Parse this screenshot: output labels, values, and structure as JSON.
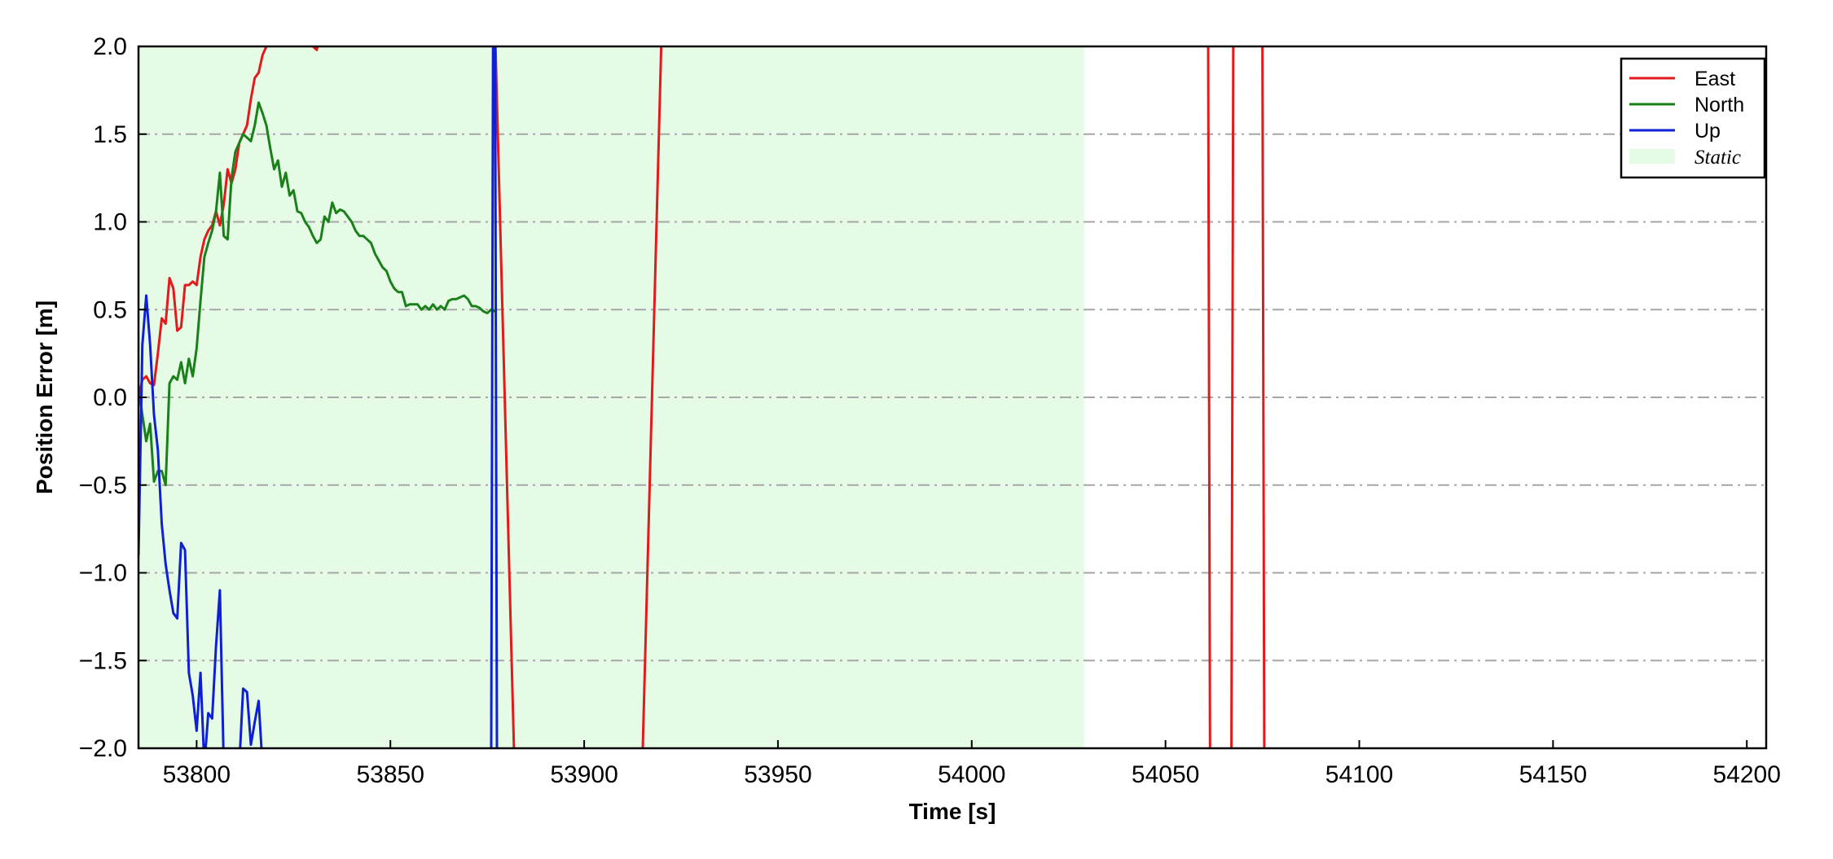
{
  "chart_data": {
    "type": "line",
    "title": "",
    "xlabel": "Time [s]",
    "ylabel": "Position Error [m]",
    "xlim": [
      53785,
      54205
    ],
    "ylim": [
      -2.0,
      2.0
    ],
    "x_ticks": [
      53800,
      53850,
      53900,
      53950,
      54000,
      54050,
      54100,
      54150,
      54200
    ],
    "y_ticks": [
      -2.0,
      -1.5,
      -1.0,
      -0.5,
      0.0,
      0.5,
      1.0,
      1.5,
      2.0
    ],
    "y_tick_labels": [
      "−2.0",
      "−1.5",
      "−1.0",
      "−0.5",
      "0.0",
      "0.5",
      "1.0",
      "1.5",
      "2.0"
    ],
    "grid": "horizontal dash-dot",
    "legend_position": "top-right",
    "static_band": {
      "label": "Static",
      "x_start": 53785,
      "x_end": 54029,
      "color": "#e6fbe6"
    },
    "series": [
      {
        "name": "East",
        "color": "#e31a1c",
        "x": [
          53785,
          53786,
          53787,
          53788,
          53789,
          53790,
          53791,
          53792,
          53793,
          53794,
          53795,
          53796,
          53797,
          53798,
          53799,
          53800,
          53801,
          53802,
          53803,
          53804,
          53805,
          53806,
          53807,
          53808,
          53809,
          53810,
          53811,
          53812,
          53813,
          53814,
          53815,
          53816,
          53817,
          53818,
          53819,
          53820,
          53821,
          53830,
          53831,
          53832,
          53877,
          53882,
          53915,
          53920,
          54061,
          54061.5,
          54067,
          54067.5,
          54075,
          54075.5
        ],
        "y": [
          0.0,
          0.1,
          0.12,
          0.08,
          0.07,
          0.25,
          0.45,
          0.42,
          0.68,
          0.62,
          0.38,
          0.4,
          0.64,
          0.64,
          0.66,
          0.64,
          0.8,
          0.9,
          0.95,
          0.98,
          1.06,
          0.98,
          1.1,
          1.3,
          1.22,
          1.3,
          1.45,
          1.5,
          1.55,
          1.7,
          1.82,
          1.85,
          1.95,
          2.0,
          2.1,
          2.1,
          2.1,
          2.0,
          1.98,
          2.1,
          2.1,
          -2.1,
          -2.1,
          2.1,
          2.1,
          -2.1,
          -2.1,
          2.1,
          2.1,
          -2.1
        ]
      },
      {
        "name": "North",
        "color": "#1a801a",
        "x": [
          53785,
          53786,
          53787,
          53788,
          53789,
          53790,
          53791,
          53792,
          53793,
          53794,
          53795,
          53796,
          53797,
          53798,
          53799,
          53800,
          53801,
          53802,
          53803,
          53804,
          53805,
          53806,
          53807,
          53808,
          53809,
          53810,
          53811,
          53812,
          53813,
          53814,
          53815,
          53816,
          53817,
          53818,
          53819,
          53820,
          53821,
          53822,
          53823,
          53824,
          53825,
          53826,
          53827,
          53828,
          53829,
          53830,
          53831,
          53832,
          53833,
          53834,
          53835,
          53836,
          53837,
          53838,
          53839,
          53840,
          53841,
          53842,
          53843,
          53844,
          53845,
          53846,
          53847,
          53848,
          53849,
          53850,
          53851,
          53852,
          53853,
          53854,
          53855,
          53856,
          53857,
          53858,
          53859,
          53860,
          53861,
          53862,
          53863,
          53864,
          53865,
          53866,
          53867,
          53868,
          53869,
          53870,
          53871,
          53872,
          53873,
          53874,
          53875,
          53876,
          53877,
          53877.5
        ],
        "y": [
          0.05,
          -0.1,
          -0.25,
          -0.15,
          -0.48,
          -0.42,
          -0.42,
          -0.5,
          0.08,
          0.12,
          0.1,
          0.2,
          0.08,
          0.22,
          0.12,
          0.28,
          0.55,
          0.8,
          0.88,
          0.95,
          1.06,
          1.28,
          0.92,
          0.9,
          1.25,
          1.4,
          1.45,
          1.5,
          1.48,
          1.46,
          1.55,
          1.68,
          1.62,
          1.55,
          1.42,
          1.3,
          1.35,
          1.2,
          1.28,
          1.15,
          1.18,
          1.06,
          1.05,
          1.0,
          0.97,
          0.92,
          0.88,
          0.9,
          1.03,
          1.0,
          1.11,
          1.05,
          1.07,
          1.06,
          1.03,
          1.0,
          0.95,
          0.92,
          0.92,
          0.9,
          0.88,
          0.82,
          0.78,
          0.74,
          0.72,
          0.66,
          0.62,
          0.6,
          0.6,
          0.52,
          0.53,
          0.53,
          0.53,
          0.5,
          0.52,
          0.5,
          0.53,
          0.5,
          0.52,
          0.5,
          0.55,
          0.56,
          0.56,
          0.57,
          0.58,
          0.56,
          0.52,
          0.52,
          0.51,
          0.49,
          0.48,
          0.5,
          0.49,
          0.49
        ]
      },
      {
        "name": "Up",
        "color": "#0f1fd6",
        "x": [
          53785,
          53786,
          53787,
          53788,
          53789,
          53790,
          53791,
          53792,
          53793,
          53794,
          53795,
          53796,
          53797,
          53798,
          53799,
          53800,
          53801,
          53802,
          53803,
          53804,
          53805,
          53806,
          53807,
          53808,
          53809,
          53810,
          53811,
          53812,
          53813,
          53814,
          53815,
          53816,
          53817,
          53818,
          53876,
          53876.5,
          53877,
          53877.5
        ],
        "y": [
          -0.9,
          0.3,
          0.58,
          0.3,
          -0.1,
          -0.3,
          -0.72,
          -0.95,
          -1.1,
          -1.23,
          -1.26,
          -0.83,
          -0.87,
          -1.57,
          -1.7,
          -1.9,
          -1.57,
          -2.1,
          -1.8,
          -1.83,
          -1.42,
          -1.1,
          -2.1,
          -2.1,
          -2.1,
          -2.1,
          -2.1,
          -1.66,
          -1.68,
          -1.98,
          -1.85,
          -1.73,
          -2.1,
          -2.1,
          -2.1,
          2.1,
          2.1,
          -2.1
        ]
      }
    ]
  }
}
